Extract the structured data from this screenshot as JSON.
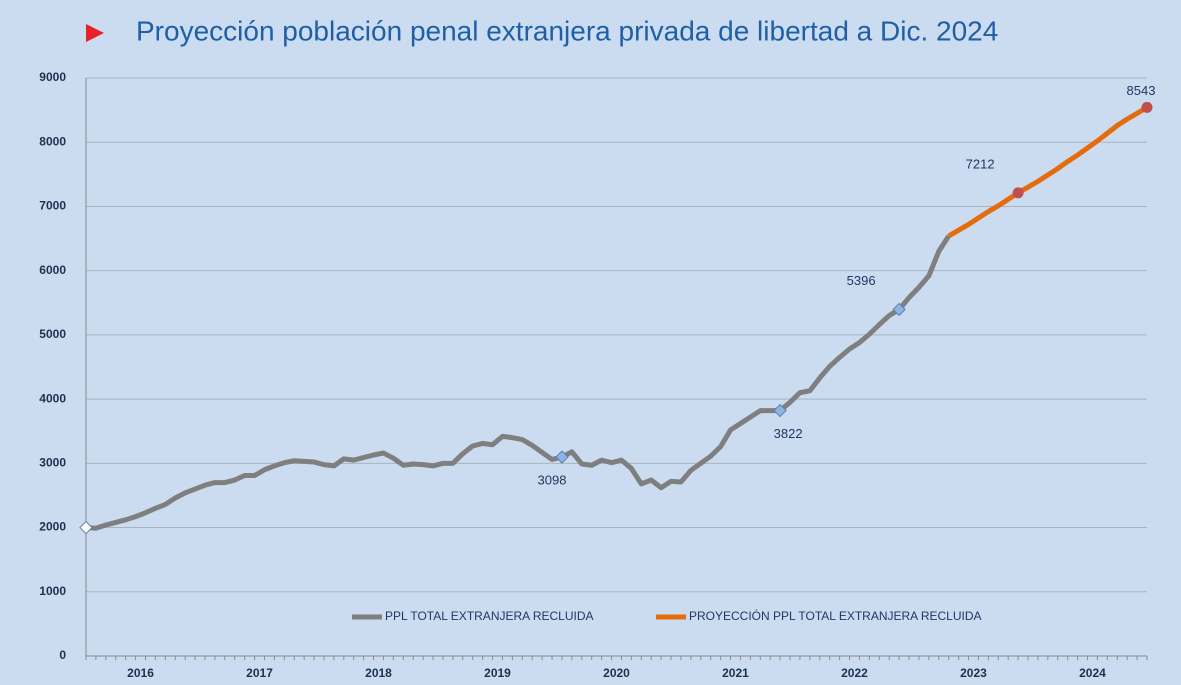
{
  "chart_data": {
    "type": "line",
    "title": "Proyección población penal extranjera privada de libertad a Dic. 2024",
    "categories": [
      "2016",
      null,
      null,
      null,
      null,
      null,
      null,
      null,
      null,
      null,
      null,
      null,
      "2017",
      null,
      null,
      null,
      null,
      null,
      null,
      null,
      null,
      null,
      null,
      null,
      "2018",
      null,
      null,
      null,
      null,
      null,
      null,
      null,
      null,
      null,
      null,
      null,
      "2019",
      null,
      null,
      null,
      null,
      null,
      null,
      null,
      null,
      null,
      null,
      null,
      "2020",
      null,
      null,
      null,
      null,
      null,
      null,
      null,
      null,
      null,
      null,
      null,
      "2021",
      null,
      null,
      null,
      null,
      null,
      null,
      null,
      null,
      null,
      null,
      null,
      "2022",
      null,
      null,
      null,
      null,
      null,
      null,
      null,
      null,
      null,
      null,
      null,
      "2023",
      null,
      null,
      null,
      null,
      null,
      null,
      null,
      null,
      null,
      null,
      null,
      "2024",
      null,
      null,
      null,
      null,
      null,
      null,
      null,
      null,
      null,
      null,
      null
    ],
    "series": [
      {
        "name": "PPL TOTAL EXTRANJERA RECLUIDA",
        "color": "#7f7f7f",
        "values": [
          2000,
          1990,
          2040,
          2080,
          2120,
          2170,
          2230,
          2300,
          2360,
          2460,
          2540,
          2600,
          2660,
          2700,
          2700,
          2740,
          2810,
          2810,
          2900,
          2960,
          3010,
          3040,
          3030,
          3020,
          2980,
          2960,
          3070,
          3050,
          3090,
          3130,
          3160,
          3080,
          2970,
          2990,
          2980,
          2960,
          3000,
          3000,
          3150,
          3270,
          3310,
          3290,
          3420,
          3400,
          3370,
          3280,
          3170,
          3060,
          3098,
          3180,
          2990,
          2970,
          3050,
          3010,
          3050,
          2920,
          2680,
          2740,
          2620,
          2720,
          2710,
          2890,
          3000,
          3110,
          3260,
          3520,
          3620,
          3720,
          3820,
          3820,
          3822,
          3950,
          4100,
          4130,
          4330,
          4510,
          4650,
          4780,
          4880,
          5010,
          5160,
          5300,
          5396,
          5580,
          5740,
          5920,
          6300,
          6540,
          null,
          null,
          null,
          null,
          null,
          null,
          null,
          null,
          null,
          null,
          null,
          null,
          null,
          null,
          null,
          null,
          null,
          null,
          null,
          null
        ],
        "markers": [
          {
            "index": 0,
            "color": "#ffffff"
          },
          {
            "index": 48,
            "color": "#8db4e2",
            "label": "below-left"
          },
          {
            "index": 70,
            "color": "#8db4e2",
            "label": "below"
          },
          {
            "index": 82,
            "color": "#8db4e2",
            "label": "above-left"
          }
        ],
        "marker_shape": "diamond"
      },
      {
        "name": "PROYECCIÓN PPL TOTAL EXTRANJERA RECLUIDA",
        "color": "#e46c0a",
        "values": [
          null,
          null,
          null,
          null,
          null,
          null,
          null,
          null,
          null,
          null,
          null,
          null,
          null,
          null,
          null,
          null,
          null,
          null,
          null,
          null,
          null,
          null,
          null,
          null,
          null,
          null,
          null,
          null,
          null,
          null,
          null,
          null,
          null,
          null,
          null,
          null,
          null,
          null,
          null,
          null,
          null,
          null,
          null,
          null,
          null,
          null,
          null,
          null,
          null,
          null,
          null,
          null,
          null,
          null,
          null,
          null,
          null,
          null,
          null,
          null,
          null,
          null,
          null,
          null,
          null,
          null,
          null,
          null,
          null,
          null,
          null,
          null,
          null,
          null,
          null,
          null,
          null,
          null,
          null,
          null,
          null,
          null,
          null,
          null,
          null,
          null,
          null,
          6540,
          6630,
          6720,
          6820,
          6920,
          7010,
          7110,
          7212,
          7300,
          7390,
          7490,
          7590,
          7700,
          7800,
          7910,
          8020,
          8140,
          8260,
          8360,
          8450,
          8543
        ],
        "markers": [
          {
            "index": 94,
            "color": "#c0504d",
            "label": "above-left"
          },
          {
            "index": 107,
            "color": "#c0504d",
            "label": "above"
          }
        ],
        "marker_shape": "circle"
      }
    ],
    "ylim": [
      0,
      9000
    ],
    "yticks": [
      0,
      1000,
      2000,
      3000,
      4000,
      5000,
      6000,
      7000,
      8000,
      9000
    ],
    "grid": true,
    "legend": "bottom"
  }
}
